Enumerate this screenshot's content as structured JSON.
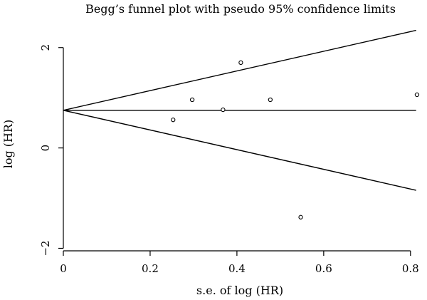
{
  "chart_data": {
    "type": "scatter",
    "title": "Begg’s funnel plot with pseudo 95% confidence limits",
    "xlabel": "s.e. of log (HR)",
    "ylabel": "log (HR)",
    "xlim": [
      0,
      0.82
    ],
    "ylim": [
      -2.05,
      2.55
    ],
    "x_ticks": [
      0,
      0.2,
      0.4,
      0.6,
      0.8
    ],
    "x_tick_labels": [
      "0",
      "0.2",
      "0.4",
      "0.6",
      "0.8"
    ],
    "y_ticks": [
      2,
      0,
      -2
    ],
    "y_tick_labels": [
      "2",
      "0",
      "−2"
    ],
    "grid": false,
    "pooled_estimate": 0.75,
    "pseudo_ci_multiplier": 1.96,
    "ci_lines_x_range": [
      0,
      0.813
    ],
    "points": [
      {
        "x": 0.253,
        "y": 0.56
      },
      {
        "x": 0.297,
        "y": 0.96
      },
      {
        "x": 0.368,
        "y": 0.76
      },
      {
        "x": 0.409,
        "y": 1.7
      },
      {
        "x": 0.477,
        "y": 0.96
      },
      {
        "x": 0.547,
        "y": -1.38
      },
      {
        "x": 0.815,
        "y": 1.06
      }
    ]
  }
}
